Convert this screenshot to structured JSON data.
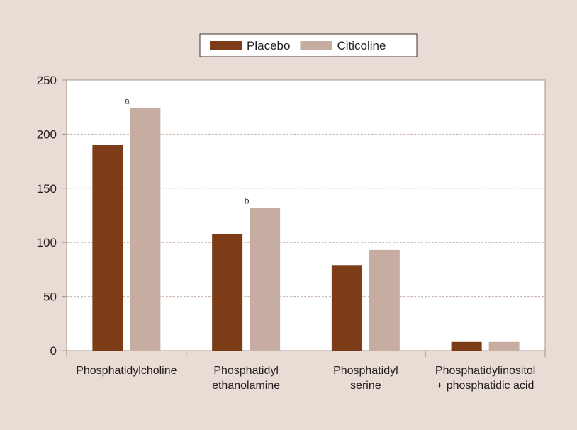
{
  "chart_data": {
    "type": "bar",
    "categories": [
      [
        "Phosphatidylcholine"
      ],
      [
        "Phosphatidyl",
        "ethanolamine"
      ],
      [
        "Phosphatidyl",
        "serine"
      ],
      [
        "Phosphatidylinositol",
        "+ phosphatidic acid"
      ]
    ],
    "series": [
      {
        "name": "Placebo",
        "color": "#7b3c17",
        "values": [
          190,
          108,
          79,
          8
        ]
      },
      {
        "name": "Citicoline",
        "color": "#c7ada1",
        "values": [
          224,
          132,
          93,
          8
        ]
      }
    ],
    "annotations": [
      {
        "series": 1,
        "category": 0,
        "text": "a"
      },
      {
        "series": 1,
        "category": 1,
        "text": "b"
      }
    ],
    "yticks": [
      0,
      50,
      100,
      150,
      200,
      250
    ],
    "ylim": [
      0,
      250
    ],
    "grid": true,
    "legend_position": "top-center",
    "title": "",
    "xlabel": "",
    "ylabel": ""
  },
  "colors": {
    "background": "#e8dcd5",
    "plot_background": "#ffffff",
    "axis": "#a8968c",
    "grid": "#c9b3a8"
  }
}
